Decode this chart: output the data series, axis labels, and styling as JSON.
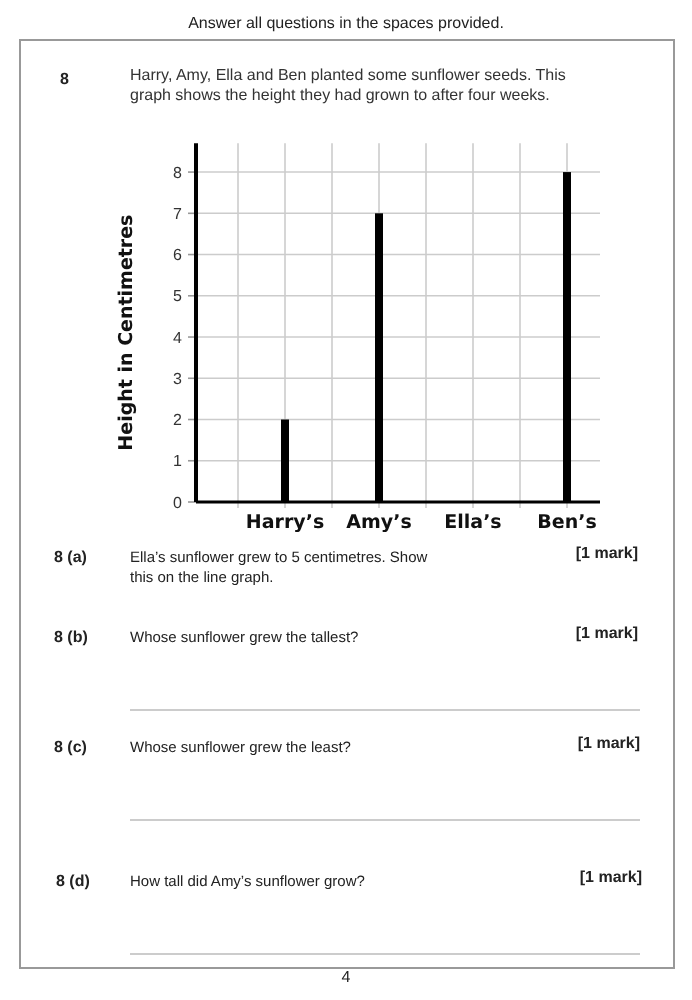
{
  "chart_data": {
    "type": "bar",
    "title": "Harry, Amy, Ella and Ben planted some sunflower seeds. This graph shows the height they had grown to after four weeks.",
    "ylabel": "Height in Centimetres",
    "categories": [
      null,
      "Harry’s",
      null,
      "Amy’s",
      null,
      "Ella’s",
      null,
      "Ben’s"
    ],
    "values": [
      null,
      2,
      null,
      7,
      null,
      null,
      null,
      8
    ],
    "color": "#000000",
    "ylim": [
      0,
      8.7
    ],
    "yticks": [
      0,
      1,
      2,
      3,
      4,
      5,
      6,
      7,
      8
    ],
    "grid": true,
    "annotations": [
      "Answer all questions in the spaces provided.",
      "8",
      "8 (a)",
      "Ella’s sunflower grew to 5 centimetres. Show this on the line graph.",
      "[1 mark]",
      "8 (b)",
      "Whose sunflower grew the tallest?",
      "[1 mark]",
      "8 (c)",
      "Whose sunflower grew the least?",
      "[1 mark]",
      "8 (d)",
      "How tall did Amy’s sunflower grow?",
      "[1 mark]",
      "4"
    ]
  }
}
